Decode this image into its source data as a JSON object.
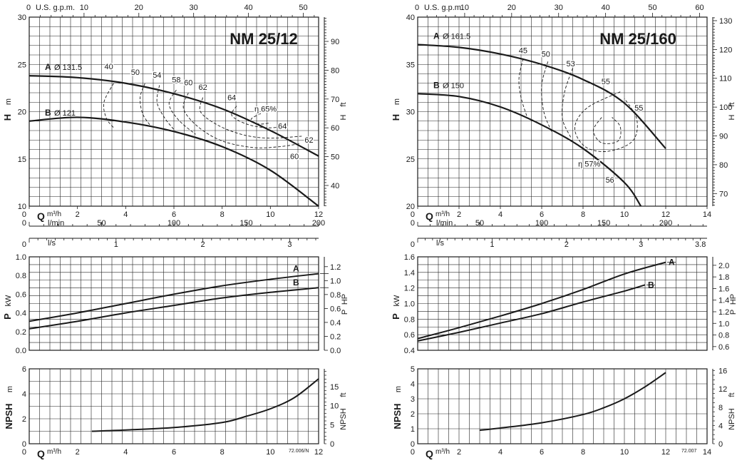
{
  "colors": {
    "line": "#1a1a1a",
    "grid": "#222222",
    "background": "#ffffff"
  },
  "chart_data": [
    {
      "id": "nm2512",
      "title": "NM 25/12",
      "type": "line",
      "flow": {
        "m3h": {
          "label": "m³/h",
          "min": 0,
          "max": 12,
          "ticks": [
            0,
            2,
            4,
            6,
            8,
            10,
            12
          ]
        },
        "gpm": {
          "label": "U.S. g.p.m.",
          "max": 52.8,
          "ticks": [
            10,
            20,
            30,
            40,
            50
          ]
        },
        "lmin": {
          "label": "l/min",
          "max": 200,
          "ticks": [
            0,
            50,
            100,
            150,
            200
          ]
        },
        "ls": {
          "label": "l/s",
          "max": 3.333,
          "ticks": [
            0,
            1,
            2,
            3
          ]
        }
      },
      "head": {
        "label": "H",
        "unit": "m",
        "ylim": [
          10,
          30
        ],
        "ticks": [
          10,
          15,
          20,
          25,
          30
        ],
        "right_label": "H",
        "right_unit": "ft",
        "right_ticks": [
          40,
          50,
          60,
          70,
          80,
          90
        ]
      },
      "head_curves": [
        {
          "name": "A",
          "diameter": "Ø 131.5",
          "points": [
            [
              0,
              23.8
            ],
            [
              2,
              23.6
            ],
            [
              4,
              23.0
            ],
            [
              6,
              21.9
            ],
            [
              8,
              20.3
            ],
            [
              10,
              18.0
            ],
            [
              12,
              15.3
            ]
          ]
        },
        {
          "name": "B",
          "diameter": "Ø 121",
          "points": [
            [
              0,
              19.0
            ],
            [
              2,
              19.4
            ],
            [
              4,
              18.9
            ],
            [
              6,
              17.9
            ],
            [
              8,
              16.3
            ],
            [
              10,
              13.8
            ],
            [
              12,
              10.0
            ]
          ]
        }
      ],
      "efficiency_prefix": "η",
      "efficiency_contours": [
        {
          "label": "40",
          "points": [
            [
              3.5,
              23.0
            ],
            [
              3.1,
              21.0
            ],
            [
              3.2,
              19.3
            ],
            [
              3.5,
              18.3
            ]
          ]
        },
        {
          "label": "50",
          "points": [
            [
              4.8,
              23.0
            ],
            [
              4.6,
              21.5
            ],
            [
              4.7,
              19.8
            ],
            [
              5.0,
              18.6
            ]
          ]
        },
        {
          "label": "54",
          "points": [
            [
              5.4,
              22.8
            ],
            [
              5.3,
              21.0
            ],
            [
              5.6,
              19.4
            ],
            [
              6.0,
              18.1
            ]
          ]
        },
        {
          "label": "58",
          "points": [
            [
              6.1,
              22.3
            ],
            [
              5.8,
              20.8
            ],
            [
              6.2,
              19.1
            ],
            [
              6.9,
              17.6
            ]
          ]
        },
        {
          "label": "60",
          "points": [
            [
              6.6,
              22.0
            ],
            [
              6.4,
              20.3
            ],
            [
              7.0,
              18.4
            ],
            [
              8.0,
              16.9
            ],
            [
              9.3,
              16.2
            ],
            [
              10.4,
              16.3
            ],
            [
              11.2,
              16.6
            ]
          ]
        },
        {
          "label": "62",
          "points": [
            [
              7.2,
              21.5
            ],
            [
              7.1,
              20.0
            ],
            [
              7.8,
              18.6
            ],
            [
              8.8,
              17.6
            ],
            [
              9.9,
              17.2
            ],
            [
              11.3,
              17.4
            ]
          ]
        },
        {
          "label": "64",
          "points": [
            [
              8.6,
              20.6
            ],
            [
              8.4,
              19.6
            ],
            [
              9.0,
              18.7
            ],
            [
              9.8,
              18.3
            ],
            [
              10.5,
              18.4
            ]
          ]
        },
        {
          "label": "65%",
          "points": [
            [
              9.6,
              19.8
            ],
            [
              9.2,
              19.2
            ],
            [
              9.5,
              18.7
            ],
            [
              10.0,
              18.8
            ]
          ]
        }
      ],
      "efficiency_labels": [
        {
          "text": "40",
          "x": 3.3,
          "y": 24.5
        },
        {
          "text": "50",
          "x": 4.4,
          "y": 23.9
        },
        {
          "text": "54",
          "x": 5.3,
          "y": 23.6
        },
        {
          "text": "58",
          "x": 6.1,
          "y": 23.1
        },
        {
          "text": "60",
          "x": 6.6,
          "y": 22.8
        },
        {
          "text": "62",
          "x": 7.2,
          "y": 22.3
        },
        {
          "text": "64",
          "x": 8.4,
          "y": 21.2
        },
        {
          "text": "η 65%",
          "x": 9.8,
          "y": 20.0
        },
        {
          "text": "64",
          "x": 10.5,
          "y": 18.2
        },
        {
          "text": "62",
          "x": 11.6,
          "y": 16.7
        },
        {
          "text": "60",
          "x": 11.0,
          "y": 15.0
        }
      ],
      "power": {
        "label": "P",
        "unit": "kW",
        "ylim": [
          0,
          1.0
        ],
        "ticks": [
          0,
          0.2,
          0.4,
          0.6,
          0.8,
          1.0
        ],
        "right_label": "P",
        "right_unit": "HP",
        "right_ticks": [
          0,
          0.2,
          0.4,
          0.6,
          0.8,
          1.0,
          1.2
        ],
        "series": [
          {
            "name": "A",
            "points": [
              [
                0,
                0.31
              ],
              [
                2,
                0.4
              ],
              [
                4,
                0.5
              ],
              [
                6,
                0.6
              ],
              [
                8,
                0.69
              ],
              [
                10,
                0.76
              ],
              [
                12,
                0.82
              ]
            ]
          },
          {
            "name": "B",
            "points": [
              [
                0,
                0.23
              ],
              [
                2,
                0.31
              ],
              [
                4,
                0.4
              ],
              [
                6,
                0.48
              ],
              [
                8,
                0.56
              ],
              [
                10,
                0.62
              ],
              [
                12,
                0.67
              ]
            ]
          }
        ]
      },
      "npsh": {
        "label": "NPSH",
        "unit": "m",
        "ylim": [
          0,
          6
        ],
        "ticks": [
          0,
          2,
          4,
          6
        ],
        "right_label": "NPSH",
        "right_unit": "ft",
        "right_ticks": [
          0,
          5,
          10,
          15
        ],
        "points": [
          [
            2.6,
            1.0
          ],
          [
            4,
            1.1
          ],
          [
            6,
            1.3
          ],
          [
            8,
            1.7
          ],
          [
            9,
            2.2
          ],
          [
            10,
            2.8
          ],
          [
            11,
            3.7
          ],
          [
            12,
            5.2
          ]
        ]
      },
      "code": "72.006/N"
    },
    {
      "id": "nm25160",
      "title": "NM 25/160",
      "type": "line",
      "flow": {
        "m3h": {
          "label": "m³/h",
          "min": 0,
          "max": 14,
          "ticks": [
            0,
            2,
            4,
            6,
            8,
            10,
            12,
            14
          ]
        },
        "gpm": {
          "label": "U.S. g.p.m.",
          "max": 61.6,
          "ticks": [
            10,
            20,
            30,
            40,
            50,
            60
          ]
        },
        "lmin": {
          "label": "l/min",
          "max": 233.3,
          "ticks": [
            0,
            50,
            100,
            150,
            200
          ]
        },
        "ls": {
          "label": "l/s",
          "max": 3.889,
          "ticks": [
            0,
            1,
            2,
            3,
            3.8
          ]
        }
      },
      "head": {
        "label": "H",
        "unit": "m",
        "ylim": [
          20,
          40
        ],
        "ticks": [
          20,
          25,
          30,
          35,
          40
        ],
        "right_label": "H",
        "right_unit": "ft",
        "right_ticks": [
          70,
          80,
          90,
          100,
          110,
          120,
          130
        ]
      },
      "head_curves": [
        {
          "name": "A",
          "diameter": "Ø 161.5",
          "points": [
            [
              0,
              37.1
            ],
            [
              2,
              36.8
            ],
            [
              4,
              36.1
            ],
            [
              6,
              35.0
            ],
            [
              8,
              33.4
            ],
            [
              10,
              30.9
            ],
            [
              12,
              26.1
            ]
          ]
        },
        {
          "name": "B",
          "diameter": "Ø 150",
          "points": [
            [
              0,
              31.9
            ],
            [
              2,
              31.6
            ],
            [
              4,
              30.5
            ],
            [
              6,
              28.6
            ],
            [
              8,
              26.1
            ],
            [
              10,
              22.5
            ],
            [
              10.8,
              20.0
            ]
          ]
        }
      ],
      "efficiency_prefix": "η",
      "efficiency_contours": [
        {
          "label": "45",
          "points": [
            [
              5.1,
              35.6
            ],
            [
              4.9,
              33.5
            ],
            [
              5.0,
              31.5
            ],
            [
              5.3,
              29.4
            ]
          ]
        },
        {
          "label": "50",
          "points": [
            [
              6.3,
              35.3
            ],
            [
              6.0,
              32.8
            ],
            [
              6.1,
              30.0
            ],
            [
              6.5,
              27.8
            ]
          ]
        },
        {
          "label": "53",
          "points": [
            [
              7.5,
              34.6
            ],
            [
              7.1,
              32.0
            ],
            [
              7.0,
              29.3
            ],
            [
              7.4,
              27.3
            ]
          ]
        },
        {
          "label": "55",
          "points": [
            [
              9.8,
              32.1
            ],
            [
              8.2,
              30.4
            ],
            [
              7.6,
              28.3
            ],
            [
              8.1,
              26.3
            ],
            [
              9.2,
              25.8
            ],
            [
              10.4,
              26.9
            ],
            [
              10.6,
              29.2
            ],
            [
              10.0,
              31.4
            ]
          ]
        },
        {
          "label": "57%",
          "points": [
            [
              8.9,
              29.4
            ],
            [
              8.5,
              28.0
            ],
            [
              8.9,
              26.7
            ],
            [
              9.7,
              26.9
            ],
            [
              9.8,
              28.4
            ],
            [
              9.4,
              29.4
            ]
          ]
        }
      ],
      "efficiency_labels": [
        {
          "text": "45",
          "x": 5.1,
          "y": 36.2
        },
        {
          "text": "50",
          "x": 6.2,
          "y": 35.8
        },
        {
          "text": "53",
          "x": 7.4,
          "y": 34.8
        },
        {
          "text": "55",
          "x": 9.1,
          "y": 32.9
        },
        {
          "text": "55",
          "x": 10.7,
          "y": 30.1
        },
        {
          "text": "η 57%",
          "x": 8.3,
          "y": 24.2
        },
        {
          "text": "56",
          "x": 9.3,
          "y": 22.5
        }
      ],
      "power": {
        "label": "P",
        "unit": "kW",
        "ylim": [
          0.4,
          1.6
        ],
        "ticks": [
          0.4,
          0.6,
          0.8,
          1.0,
          1.2,
          1.4,
          1.6
        ],
        "right_label": "P",
        "right_unit": "HP",
        "right_ticks": [
          0.6,
          0.8,
          1.0,
          1.2,
          1.4,
          1.6,
          1.8,
          2.0
        ],
        "series": [
          {
            "name": "A",
            "points": [
              [
                0,
                0.55
              ],
              [
                2,
                0.69
              ],
              [
                4,
                0.84
              ],
              [
                6,
                1.0
              ],
              [
                8,
                1.18
              ],
              [
                10,
                1.38
              ],
              [
                12,
                1.53
              ]
            ]
          },
          {
            "name": "B",
            "points": [
              [
                0,
                0.52
              ],
              [
                2,
                0.63
              ],
              [
                4,
                0.75
              ],
              [
                6,
                0.87
              ],
              [
                8,
                1.02
              ],
              [
                10,
                1.16
              ],
              [
                11,
                1.24
              ]
            ]
          }
        ]
      },
      "npsh": {
        "label": "NPSH",
        "unit": "m",
        "ylim": [
          0,
          5
        ],
        "ticks": [
          0,
          1,
          2,
          3,
          4,
          5
        ],
        "right_label": "NPSH",
        "right_unit": "ft",
        "right_ticks": [
          0,
          4,
          8,
          12,
          16
        ],
        "points": [
          [
            3,
            0.9
          ],
          [
            4,
            1.05
          ],
          [
            6,
            1.4
          ],
          [
            8,
            1.95
          ],
          [
            9,
            2.4
          ],
          [
            10,
            3.0
          ],
          [
            11,
            3.8
          ],
          [
            12,
            4.75
          ]
        ]
      },
      "code": "72.007"
    }
  ]
}
